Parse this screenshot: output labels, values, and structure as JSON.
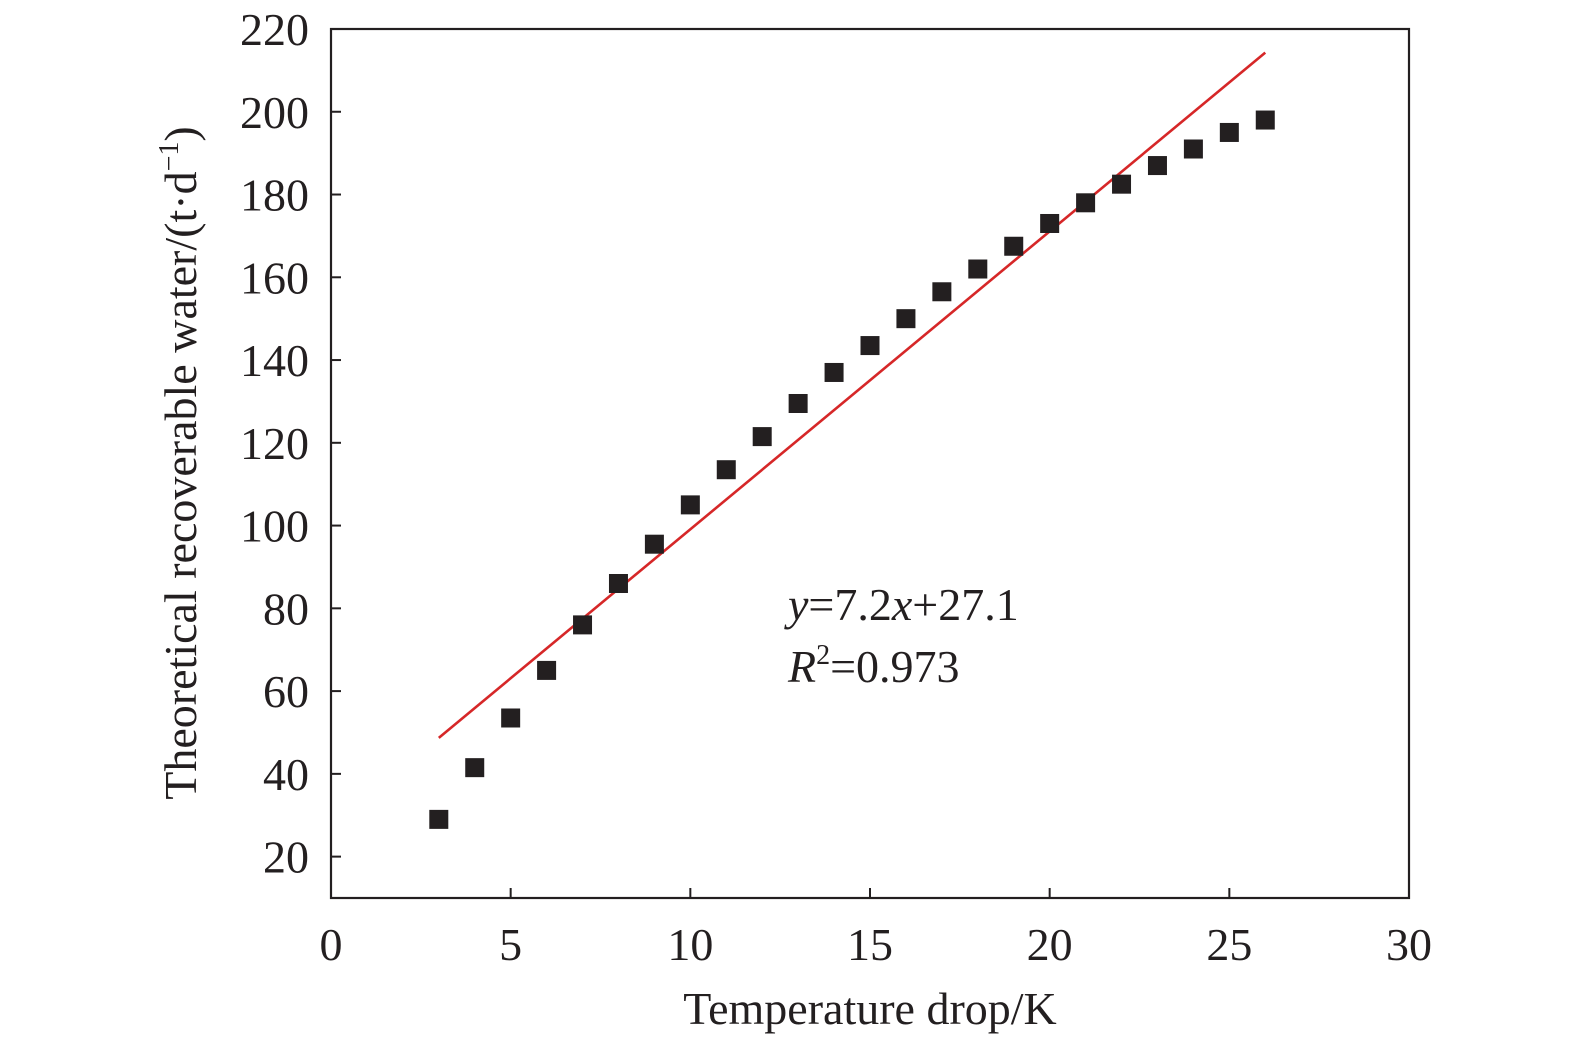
{
  "chart_data": {
    "type": "scatter",
    "xlabel": "Temperature drop/K",
    "ylabel": "Theoretical recoverable water/(t·d",
    "ylabel_sup": "−1",
    "ylabel_suffix": ")",
    "xlim": [
      0,
      30
    ],
    "ylim": [
      10,
      220
    ],
    "x_ticks": [
      0,
      5,
      10,
      15,
      20,
      25,
      30
    ],
    "y_ticks": [
      20,
      40,
      60,
      80,
      100,
      120,
      140,
      160,
      180,
      200,
      220
    ],
    "grid": false,
    "series": [
      {
        "marker": "square",
        "color": "#231f20",
        "x": [
          3,
          4,
          5,
          6,
          7,
          8,
          9,
          10,
          11,
          12,
          13,
          14,
          15,
          16,
          17,
          18,
          19,
          20,
          21,
          22,
          23,
          24,
          25,
          26
        ],
        "y": [
          29,
          41.5,
          53.5,
          65,
          76,
          86,
          95.5,
          105,
          113.5,
          121.5,
          129.5,
          137,
          143.5,
          150,
          156.5,
          162,
          167.5,
          173,
          178,
          182.5,
          187,
          191,
          195,
          198
        ]
      }
    ],
    "fit_line": {
      "color": "#d62728",
      "slope": 7.2,
      "intercept": 27.1,
      "x_range": [
        3,
        26
      ]
    },
    "annotations": {
      "equation": {
        "y_var": "y",
        "eq": "=7.2",
        "x_var": "x",
        "rest": "+27.1"
      },
      "r2": {
        "var": "R",
        "sup": "2",
        "value": "=0.973"
      }
    }
  }
}
